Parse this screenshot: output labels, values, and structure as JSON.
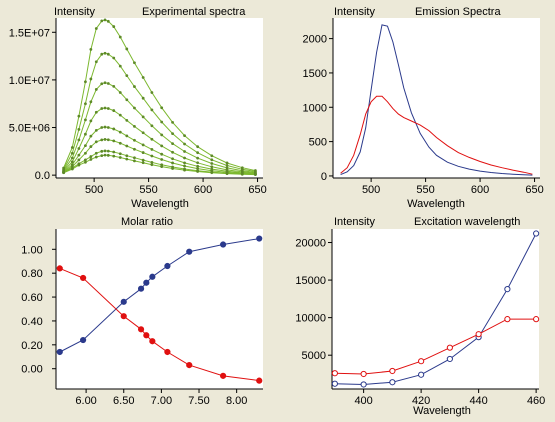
{
  "chart_data": [
    {
      "type": "line",
      "title": "Experimental spectra",
      "ylabel": "Intensity",
      "xlabel": "Wavelength",
      "xlim": [
        465,
        655
      ],
      "ylim": [
        -300000,
        16500000
      ],
      "xticks": [
        500,
        550,
        600,
        650
      ],
      "yticks": [
        0,
        5000000,
        10000000,
        15000000
      ],
      "xtick_labels": [
        "500",
        "550",
        "600",
        "650"
      ],
      "ytick_labels": [
        "0.0",
        "5.0E+06",
        "1.0E+07",
        "1.5E+07"
      ],
      "colors": {
        "line": "#7cb82f",
        "marker": "#5e8a28"
      },
      "x": [
        472,
        480,
        486,
        492,
        497,
        502,
        507,
        510,
        513,
        518,
        524,
        530,
        537,
        545,
        553,
        562,
        572,
        583,
        595,
        608,
        622,
        636,
        648
      ],
      "series": [
        {
          "values": [
            250000,
            650000,
            1050000,
            1350000,
            1650000,
            1900000,
            2050000,
            2100000,
            2080000,
            2000000,
            1850000,
            1680000,
            1500000,
            1300000,
            1100000,
            900000,
            700000,
            530000,
            380000,
            260000,
            160000,
            100000,
            60000
          ]
        },
        {
          "values": [
            270000,
            750000,
            1200000,
            1600000,
            1950000,
            2300000,
            2500000,
            2550000,
            2520000,
            2430000,
            2250000,
            2040000,
            1830000,
            1580000,
            1340000,
            1090000,
            850000,
            640000,
            460000,
            320000,
            200000,
            120000,
            80000
          ]
        },
        {
          "values": [
            300000,
            900000,
            1600000,
            2300000,
            3000000,
            3500000,
            3700000,
            3750000,
            3720000,
            3600000,
            3350000,
            3060000,
            2720000,
            2370000,
            2010000,
            1640000,
            1280000,
            960000,
            690000,
            470000,
            290000,
            180000,
            110000
          ]
        },
        {
          "values": [
            350000,
            1100000,
            2100000,
            3100000,
            4100000,
            4700000,
            5000000,
            5050000,
            5000000,
            4850000,
            4520000,
            4120000,
            3660000,
            3180000,
            2700000,
            2200000,
            1720000,
            1290000,
            930000,
            630000,
            400000,
            240000,
            150000
          ]
        },
        {
          "values": [
            420000,
            1400000,
            2800000,
            4300000,
            5700000,
            6600000,
            7000000,
            7050000,
            7000000,
            6780000,
            6300000,
            5750000,
            5120000,
            4450000,
            3770000,
            3070000,
            2400000,
            1800000,
            1300000,
            880000,
            550000,
            340000,
            210000
          ]
        },
        {
          "values": [
            500000,
            1800000,
            3700000,
            5800000,
            7700000,
            9000000,
            9600000,
            9700000,
            9620000,
            9320000,
            8680000,
            7920000,
            7050000,
            6120000,
            5190000,
            4230000,
            3310000,
            2480000,
            1790000,
            1220000,
            760000,
            460000,
            290000
          ]
        },
        {
          "values": [
            600000,
            2300000,
            4800000,
            7500000,
            10100000,
            11900000,
            12700000,
            12800000,
            12700000,
            12300000,
            11450000,
            10450000,
            9300000,
            8080000,
            6850000,
            5580000,
            4360000,
            3270000,
            2360000,
            1610000,
            1010000,
            610000,
            380000
          ]
        },
        {
          "values": [
            750000,
            2900000,
            6200000,
            9800000,
            13200000,
            15400000,
            16200000,
            16300000,
            16150000,
            15600000,
            14500000,
            13250000,
            11800000,
            10250000,
            8680000,
            7080000,
            5540000,
            4150000,
            2990000,
            2040000,
            1280000,
            780000,
            480000
          ]
        }
      ]
    },
    {
      "type": "line",
      "title": "Emission Spectra",
      "ylabel": "Intensity",
      "xlabel": "Wavelength",
      "xlim": [
        465,
        655
      ],
      "ylim": [
        -30,
        2300
      ],
      "xticks": [
        500,
        550,
        600,
        650
      ],
      "yticks": [
        0,
        500,
        1000,
        1500,
        2000
      ],
      "xtick_labels": [
        "500",
        "550",
        "600",
        "650"
      ],
      "ytick_labels": [
        "0",
        "500",
        "1000",
        "1500",
        "2000"
      ],
      "x": [
        472,
        478,
        484,
        490,
        495,
        500,
        505,
        510,
        515,
        520,
        525,
        530,
        537,
        545,
        553,
        560,
        570,
        580,
        590,
        600,
        610,
        620,
        630,
        640,
        648
      ],
      "series": [
        {
          "color": "#2b3a8c",
          "values": [
            20,
            60,
            150,
            350,
            700,
            1250,
            1800,
            2200,
            2180,
            1950,
            1620,
            1280,
            920,
            620,
            420,
            300,
            200,
            140,
            100,
            70,
            50,
            35,
            25,
            18,
            12
          ]
        },
        {
          "color": "#e01010",
          "values": [
            40,
            120,
            300,
            600,
            900,
            1080,
            1160,
            1160,
            1080,
            980,
            900,
            850,
            800,
            740,
            660,
            560,
            440,
            340,
            270,
            210,
            160,
            120,
            85,
            55,
            25
          ]
        }
      ]
    },
    {
      "type": "line",
      "title": "Molar ratio",
      "xlim": [
        5.6,
        8.35
      ],
      "ylim": [
        -0.17,
        1.17
      ],
      "xticks": [
        6.0,
        6.5,
        7.0,
        7.5,
        8.0
      ],
      "yticks": [
        0.0,
        0.2,
        0.4,
        0.6,
        0.8,
        1.0
      ],
      "xtick_labels": [
        "6.00",
        "6.50",
        "7.00",
        "7.50",
        "8.00"
      ],
      "ytick_labels": [
        "0.00",
        "0.20",
        "0.40",
        "0.60",
        "0.80",
        "1.00"
      ],
      "x": [
        5.65,
        5.96,
        6.5,
        6.73,
        6.8,
        6.88,
        7.08,
        7.37,
        7.82,
        8.3
      ],
      "series": [
        {
          "color": "#2b3a8c",
          "values": [
            0.14,
            0.24,
            0.56,
            0.67,
            0.72,
            0.77,
            0.86,
            0.98,
            1.04,
            1.09
          ]
        },
        {
          "color": "#e01010",
          "values": [
            0.84,
            0.76,
            0.44,
            0.33,
            0.28,
            0.23,
            0.14,
            0.03,
            -0.06,
            -0.1
          ]
        }
      ]
    },
    {
      "type": "line",
      "title": "Excitation wavelength",
      "ylabel": "Intensity",
      "xlabel": "Wavelength",
      "xlim": [
        389,
        461
      ],
      "ylim": [
        500,
        21800
      ],
      "xticks": [
        400,
        420,
        440,
        460
      ],
      "yticks": [
        5000,
        10000,
        15000,
        20000
      ],
      "xtick_labels": [
        "400",
        "420",
        "440",
        "460"
      ],
      "ytick_labels": [
        "5000",
        "10000",
        "15000",
        "20000"
      ],
      "x": [
        390,
        400,
        410,
        420,
        430,
        440,
        450,
        460
      ],
      "series": [
        {
          "color": "#2b3a8c",
          "values": [
            1200,
            1100,
            1400,
            2400,
            4500,
            7400,
            13800,
            21200
          ]
        },
        {
          "color": "#e01010",
          "values": [
            2600,
            2500,
            2900,
            4200,
            6000,
            7800,
            9800,
            9800
          ]
        }
      ]
    }
  ]
}
